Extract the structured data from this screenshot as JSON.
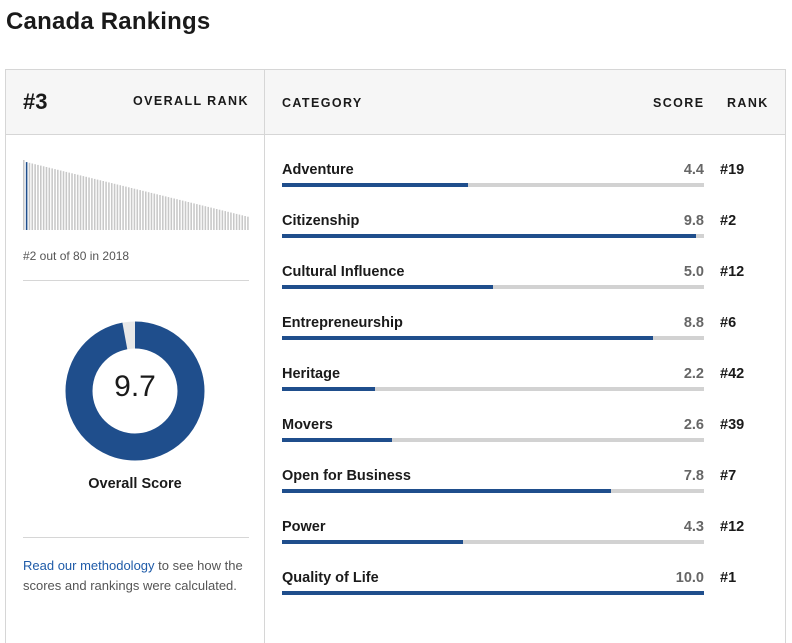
{
  "page": {
    "title": "Canada Rankings"
  },
  "summary": {
    "rank": "#3",
    "rank_label": "OVERALL RANK",
    "out_of_text": "#2 out of 80 in 2018",
    "score": "9.7",
    "score_value": 9.7,
    "score_max": 10,
    "score_label": "Overall Score",
    "methodology_link": "Read our methodology",
    "methodology_text": " to see how the scores and rankings were calculated."
  },
  "columns": {
    "category": "CATEGORY",
    "score": "SCORE",
    "rank": "RANK"
  },
  "categories": [
    {
      "name": "Adventure",
      "score": "4.4",
      "score_value": 4.4,
      "rank": "#19"
    },
    {
      "name": "Citizenship",
      "score": "9.8",
      "score_value": 9.8,
      "rank": "#2"
    },
    {
      "name": "Cultural Influence",
      "score": "5.0",
      "score_value": 5.0,
      "rank": "#12"
    },
    {
      "name": "Entrepreneurship",
      "score": "8.8",
      "score_value": 8.8,
      "rank": "#6"
    },
    {
      "name": "Heritage",
      "score": "2.2",
      "score_value": 2.2,
      "rank": "#42"
    },
    {
      "name": "Movers",
      "score": "2.6",
      "score_value": 2.6,
      "rank": "#39"
    },
    {
      "name": "Open for Business",
      "score": "7.8",
      "score_value": 7.8,
      "rank": "#7"
    },
    {
      "name": "Power",
      "score": "4.3",
      "score_value": 4.3,
      "rank": "#12"
    },
    {
      "name": "Quality of Life",
      "score": "10.0",
      "score_value": 10.0,
      "rank": "#1"
    }
  ],
  "mini_chart": {
    "highlight_index": 1,
    "values": [
      100,
      97,
      96,
      95,
      94,
      93,
      92,
      91,
      90,
      89,
      88,
      87,
      86,
      85,
      84,
      83,
      82,
      81,
      80,
      79,
      78,
      77,
      76,
      75,
      74,
      73,
      72,
      71,
      70,
      69,
      68,
      67,
      66,
      65,
      64,
      63,
      62,
      61,
      60,
      59,
      58,
      57,
      56,
      55,
      54,
      53,
      52,
      51,
      50,
      49,
      48,
      47,
      46,
      45,
      44,
      43,
      42,
      41,
      40,
      39,
      38,
      37,
      36,
      35,
      34,
      33,
      32,
      31,
      30,
      29,
      28,
      27,
      26,
      25,
      24,
      23,
      22,
      21,
      20,
      19
    ]
  },
  "colors": {
    "accent": "#1f4e8c",
    "donut_fill": "#1f4e8c",
    "donut_track": "#e8e8e8",
    "highlight_bar": "#1f4e8c",
    "mini_bar": "#c8c8c8",
    "link": "#1f5ba8"
  }
}
